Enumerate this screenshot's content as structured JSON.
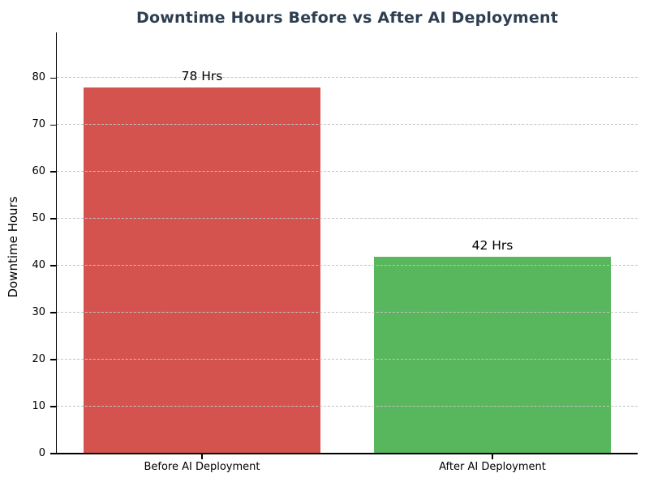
{
  "chart_data": {
    "type": "bar",
    "title": "Downtime Hours Before vs After AI Deployment",
    "categories": [
      "Before AI Deployment",
      "After AI Deployment"
    ],
    "values": [
      78,
      42
    ],
    "bar_labels": [
      "78 Hrs",
      "42 Hrs"
    ],
    "bar_colors": [
      "#d4534f",
      "#58b75c"
    ],
    "xlabel": "",
    "ylabel": "Downtime Hours",
    "ylim": [
      0,
      89.7
    ],
    "yticks": [
      0,
      10,
      20,
      30,
      40,
      50,
      60,
      70,
      80
    ],
    "grid": "horizontal-dashed-over-bars",
    "legend": "none",
    "title_color": "#2c3e50",
    "grid_color": "#c3c3c3",
    "axis_color": "#000000",
    "background_color": "#ffffff"
  }
}
